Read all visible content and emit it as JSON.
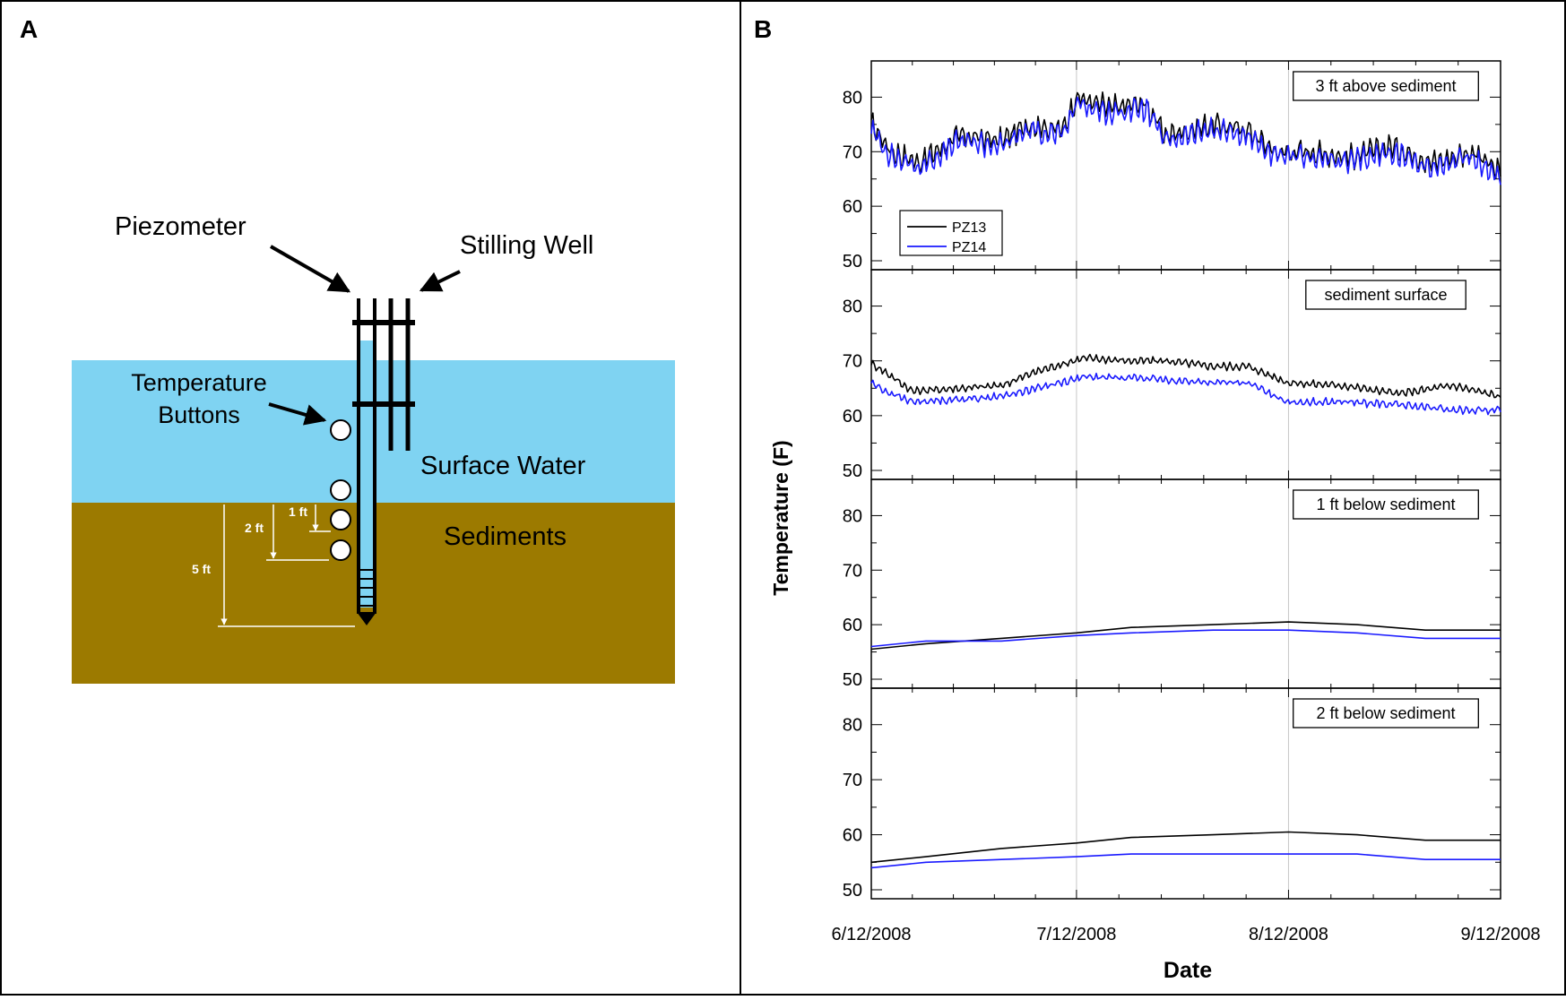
{
  "panel_a": {
    "letter": "A",
    "labels": {
      "piezometer": "Piezometer",
      "stilling_well": "Stilling Well",
      "temp_buttons_line1": "Temperature",
      "temp_buttons_line2": "Buttons",
      "surface_water": "Surface Water",
      "sediments": "Sediments",
      "depth_1ft": "1 ft",
      "depth_2ft": "2 ft",
      "depth_5ft": "5 ft"
    },
    "colors": {
      "water": "#7fd3f2",
      "sediment": "#9c7a00",
      "line": "#000000",
      "dim": "#ffffff"
    }
  },
  "panel_b": {
    "letter": "B",
    "ylabel": "Temperature (F)",
    "xlabel": "Date",
    "x_ticks": [
      "6/12/2008",
      "7/12/2008",
      "8/12/2008",
      "9/12/2008"
    ],
    "y_ticks": [
      50,
      60,
      70,
      80
    ],
    "legend": [
      "PZ13",
      "PZ14"
    ],
    "colors": {
      "PZ13": "#000000",
      "PZ14": "#1a1aff",
      "vgrid": "#c8c8c8"
    }
  },
  "chart_data": [
    {
      "type": "line",
      "label": "3 ft above sediment",
      "x_range": [
        "6/12/2008",
        "9/12/2008"
      ],
      "ylim": [
        50,
        85
      ],
      "legend_position": "bottom-left",
      "series": [
        {
          "name": "PZ13",
          "x": [
            "6/12/2008",
            "6/15/2008",
            "6/19/2008",
            "6/25/2008",
            "7/1/2008",
            "7/5/2008",
            "7/10/2008",
            "7/12/2008",
            "7/17/2008",
            "7/22/2008",
            "7/25/2008",
            "8/1/2008",
            "8/6/2008",
            "8/10/2008",
            "8/15/2008",
            "8/21/2008",
            "8/27/2008",
            "9/2/2008",
            "9/8/2008",
            "9/12/2008"
          ],
          "y": [
            75,
            70,
            68,
            73,
            72,
            75,
            74,
            80,
            78,
            79,
            73,
            75,
            74,
            70,
            70,
            69,
            71,
            68,
            70,
            66
          ]
        },
        {
          "name": "PZ14",
          "x": [
            "6/12/2008",
            "6/15/2008",
            "6/19/2008",
            "6/25/2008",
            "7/1/2008",
            "7/5/2008",
            "7/10/2008",
            "7/12/2008",
            "7/17/2008",
            "7/22/2008",
            "7/25/2008",
            "8/1/2008",
            "8/6/2008",
            "8/10/2008",
            "8/15/2008",
            "8/21/2008",
            "8/27/2008",
            "9/2/2008",
            "9/8/2008",
            "9/12/2008"
          ],
          "y": [
            74,
            69,
            67,
            72,
            71,
            74,
            73,
            79,
            77,
            78,
            72,
            74,
            73,
            69,
            69,
            68,
            70,
            67,
            69,
            65
          ]
        }
      ]
    },
    {
      "type": "line",
      "label": "sediment surface",
      "x_range": [
        "6/12/2008",
        "9/12/2008"
      ],
      "ylim": [
        50,
        85
      ],
      "series": [
        {
          "name": "PZ13",
          "x": [
            "6/12/2008",
            "6/14/2008",
            "6/18/2008",
            "6/25/2008",
            "7/1/2008",
            "7/6/2008",
            "7/13/2008",
            "7/20/2008",
            "7/25/2008",
            "8/1/2008",
            "8/6/2008",
            "8/12/2008",
            "8/20/2008",
            "8/28/2008",
            "9/5/2008",
            "9/12/2008"
          ],
          "y": [
            69.5,
            68,
            64.5,
            65,
            65.5,
            68,
            70.5,
            70,
            70,
            69,
            69,
            66,
            65.5,
            64,
            65.5,
            63.5
          ]
        },
        {
          "name": "PZ14",
          "x": [
            "6/12/2008",
            "6/14/2008",
            "6/18/2008",
            "6/25/2008",
            "7/1/2008",
            "7/6/2008",
            "7/13/2008",
            "7/20/2008",
            "7/25/2008",
            "8/1/2008",
            "8/6/2008",
            "8/12/2008",
            "8/20/2008",
            "8/28/2008",
            "9/5/2008",
            "9/12/2008"
          ],
          "y": [
            66,
            64.5,
            62.5,
            63,
            63.5,
            65,
            67,
            67,
            66.5,
            66,
            66,
            62.5,
            62.5,
            62,
            61,
            61
          ]
        }
      ]
    },
    {
      "type": "line",
      "label": "1 ft below sediment",
      "x_range": [
        "6/12/2008",
        "9/12/2008"
      ],
      "ylim": [
        50,
        85
      ],
      "series": [
        {
          "name": "PZ13",
          "x": [
            "6/12/2008",
            "6/20/2008",
            "7/1/2008",
            "7/12/2008",
            "7/20/2008",
            "8/1/2008",
            "8/12/2008",
            "8/22/2008",
            "9/1/2008",
            "9/12/2008"
          ],
          "y": [
            55.5,
            56.5,
            57.5,
            58.5,
            59.5,
            60,
            60.5,
            60,
            59,
            59
          ]
        },
        {
          "name": "PZ14",
          "x": [
            "6/12/2008",
            "6/20/2008",
            "7/1/2008",
            "7/12/2008",
            "7/20/2008",
            "8/1/2008",
            "8/12/2008",
            "8/22/2008",
            "9/1/2008",
            "9/12/2008"
          ],
          "y": [
            56,
            57,
            57,
            58,
            58.5,
            59,
            59,
            58.5,
            57.5,
            57.5
          ]
        }
      ]
    },
    {
      "type": "line",
      "label": "2 ft below sediment",
      "x_range": [
        "6/12/2008",
        "9/12/2008"
      ],
      "ylim": [
        50,
        85
      ],
      "series": [
        {
          "name": "PZ13",
          "x": [
            "6/12/2008",
            "6/20/2008",
            "7/1/2008",
            "7/12/2008",
            "7/20/2008",
            "8/1/2008",
            "8/12/2008",
            "8/22/2008",
            "9/1/2008",
            "9/12/2008"
          ],
          "y": [
            55,
            56,
            57.5,
            58.5,
            59.5,
            60,
            60.5,
            60,
            59,
            59
          ]
        },
        {
          "name": "PZ14",
          "x": [
            "6/12/2008",
            "6/20/2008",
            "7/1/2008",
            "7/12/2008",
            "7/20/2008",
            "8/1/2008",
            "8/12/2008",
            "8/22/2008",
            "9/1/2008",
            "9/12/2008"
          ],
          "y": [
            54,
            55,
            55.5,
            56,
            56.5,
            56.5,
            56.5,
            56.5,
            55.5,
            55.5
          ]
        }
      ]
    }
  ]
}
